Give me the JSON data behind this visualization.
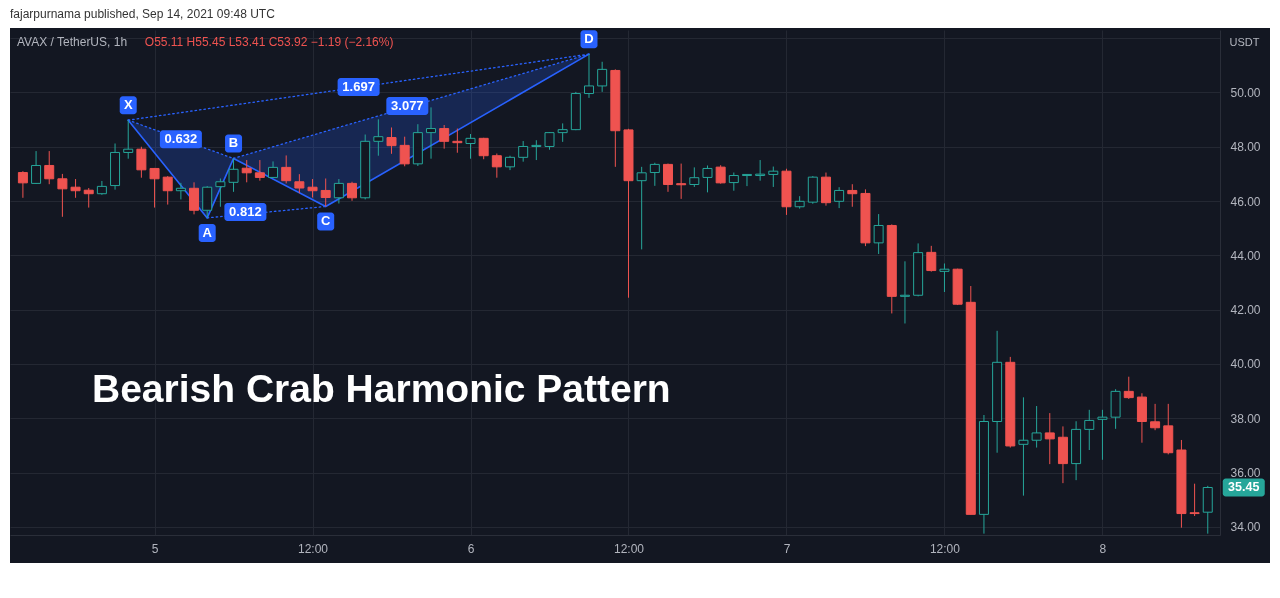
{
  "chart_data": {
    "type": "candlestick",
    "title": "AVAX / TetherUS, 1h",
    "ylabel": "USDT",
    "xlim": [
      "2021-09-04T13:24",
      "2021-09-08T08:33"
    ],
    "xticks": [
      {
        "value": "2021-09-05T00:00",
        "label": "5"
      },
      {
        "value": "2021-09-05T12:00",
        "label": "12:00"
      },
      {
        "value": "2021-09-06T00:00",
        "label": "6"
      },
      {
        "value": "2021-09-06T12:00",
        "label": "12:00"
      },
      {
        "value": "2021-09-07T00:00",
        "label": "7"
      },
      {
        "value": "2021-09-07T12:00",
        "label": "12:00"
      },
      {
        "value": "2021-09-08T00:00",
        "label": "8"
      }
    ],
    "ylim": [
      33.7,
      52.3
    ],
    "yticks": [
      {
        "value": 34,
        "label": "34.00"
      },
      {
        "value": 36,
        "label": "36.00"
      },
      {
        "value": 38,
        "label": "38.00"
      },
      {
        "value": 40,
        "label": "40.00"
      },
      {
        "value": 42,
        "label": "42.00"
      },
      {
        "value": 44,
        "label": "44.00"
      },
      {
        "value": 46,
        "label": "46.00"
      },
      {
        "value": 48,
        "label": "48.00"
      },
      {
        "value": 50,
        "label": "50.00"
      },
      {
        "value": 52,
        "label": null
      }
    ],
    "grid": true,
    "series": [
      {
        "x": [
          "2021-09-04T14:00",
          "2021-09-04T15:00",
          "2021-09-04T16:00",
          "2021-09-04T17:00",
          "2021-09-04T18:00",
          "2021-09-04T19:00",
          "2021-09-04T20:00",
          "2021-09-04T21:00",
          "2021-09-04T22:00",
          "2021-09-04T23:00",
          "2021-09-05T00:00",
          "2021-09-05T01:00",
          "2021-09-05T02:00",
          "2021-09-05T03:00",
          "2021-09-05T04:00",
          "2021-09-05T05:00",
          "2021-09-05T06:00",
          "2021-09-05T07:00",
          "2021-09-05T08:00",
          "2021-09-05T09:00",
          "2021-09-05T10:00",
          "2021-09-05T11:00",
          "2021-09-05T12:00",
          "2021-09-05T13:00",
          "2021-09-05T14:00",
          "2021-09-05T15:00",
          "2021-09-05T16:00",
          "2021-09-05T17:00",
          "2021-09-05T18:00",
          "2021-09-05T19:00",
          "2021-09-05T20:00",
          "2021-09-05T21:00",
          "2021-09-05T22:00",
          "2021-09-05T23:00",
          "2021-09-06T00:00",
          "2021-09-06T01:00",
          "2021-09-06T02:00",
          "2021-09-06T03:00",
          "2021-09-06T04:00",
          "2021-09-06T05:00",
          "2021-09-06T06:00",
          "2021-09-06T07:00",
          "2021-09-06T08:00",
          "2021-09-06T09:00",
          "2021-09-06T10:00",
          "2021-09-06T11:00",
          "2021-09-06T12:00",
          "2021-09-06T13:00",
          "2021-09-06T14:00",
          "2021-09-06T15:00",
          "2021-09-06T16:00",
          "2021-09-06T17:00",
          "2021-09-06T18:00",
          "2021-09-06T19:00",
          "2021-09-06T20:00",
          "2021-09-06T21:00",
          "2021-09-06T22:00",
          "2021-09-06T23:00",
          "2021-09-07T00:00",
          "2021-09-07T01:00",
          "2021-09-07T02:00",
          "2021-09-07T03:00",
          "2021-09-07T04:00",
          "2021-09-07T05:00",
          "2021-09-07T06:00",
          "2021-09-07T07:00",
          "2021-09-07T08:00",
          "2021-09-07T09:00",
          "2021-09-07T10:00",
          "2021-09-07T11:00",
          "2021-09-07T12:00",
          "2021-09-07T13:00",
          "2021-09-07T14:00",
          "2021-09-07T15:00",
          "2021-09-07T16:00",
          "2021-09-07T17:00",
          "2021-09-07T18:00",
          "2021-09-07T19:00",
          "2021-09-07T20:00",
          "2021-09-07T21:00",
          "2021-09-07T22:00",
          "2021-09-07T23:00",
          "2021-09-08T00:00",
          "2021-09-08T01:00",
          "2021-09-08T02:00",
          "2021-09-08T03:00",
          "2021-09-08T04:00",
          "2021-09-08T05:00",
          "2021-09-08T06:00",
          "2021-09-08T07:00",
          "2021-09-08T08:00"
        ],
        "ohlc": [
          [
            47.05,
            47.1,
            46.12,
            46.67
          ],
          [
            46.65,
            47.84,
            46.63,
            47.31
          ],
          [
            47.31,
            47.84,
            46.62,
            46.82
          ],
          [
            46.82,
            47.0,
            45.42,
            46.45
          ],
          [
            46.51,
            46.81,
            46.12,
            46.38
          ],
          [
            46.4,
            46.48,
            45.76,
            46.27
          ],
          [
            46.27,
            46.74,
            46.23,
            46.54
          ],
          [
            46.57,
            48.12,
            46.42,
            47.79
          ],
          [
            47.79,
            48.98,
            47.56,
            47.91
          ],
          [
            47.91,
            48.0,
            46.86,
            47.15
          ],
          [
            47.2,
            47.22,
            45.76,
            46.82
          ],
          [
            46.88,
            46.92,
            45.87,
            46.38
          ],
          [
            46.38,
            46.67,
            46.06,
            46.47
          ],
          [
            46.47,
            46.69,
            45.51,
            45.66
          ],
          [
            45.66,
            46.55,
            45.38,
            46.51
          ],
          [
            46.53,
            46.83,
            45.79,
            46.71
          ],
          [
            46.69,
            47.57,
            46.34,
            47.17
          ],
          [
            47.21,
            47.51,
            46.69,
            47.04
          ],
          [
            47.04,
            47.51,
            46.75,
            46.87
          ],
          [
            46.87,
            47.46,
            46.85,
            47.24
          ],
          [
            47.24,
            47.68,
            46.65,
            46.75
          ],
          [
            46.71,
            46.99,
            46.29,
            46.48
          ],
          [
            46.51,
            46.81,
            46.13,
            46.38
          ],
          [
            46.39,
            46.83,
            45.8,
            46.13
          ],
          [
            46.12,
            46.81,
            45.91,
            46.65
          ],
          [
            46.65,
            46.71,
            46.01,
            46.12
          ],
          [
            46.12,
            48.45,
            46.06,
            48.2
          ],
          [
            48.2,
            49.01,
            47.67,
            48.37
          ],
          [
            48.34,
            48.71,
            47.74,
            48.04
          ],
          [
            48.05,
            48.37,
            47.28,
            47.37
          ],
          [
            47.37,
            48.83,
            47.29,
            48.52
          ],
          [
            48.52,
            49.45,
            47.56,
            48.67
          ],
          [
            48.67,
            48.8,
            47.93,
            48.2
          ],
          [
            48.2,
            48.67,
            47.78,
            48.15
          ],
          [
            48.12,
            48.47,
            47.56,
            48.31
          ],
          [
            48.31,
            48.33,
            47.54,
            47.67
          ],
          [
            47.67,
            47.75,
            46.86,
            47.26
          ],
          [
            47.26,
            47.67,
            47.14,
            47.61
          ],
          [
            47.61,
            48.21,
            47.45,
            48.01
          ],
          [
            48.01,
            48.24,
            47.51,
            48.05
          ],
          [
            48.01,
            48.54,
            47.89,
            48.52
          ],
          [
            48.52,
            48.86,
            48.18,
            48.63
          ],
          [
            48.63,
            50.02,
            48.61,
            49.96
          ],
          [
            49.96,
            51.41,
            49.8,
            50.24
          ],
          [
            50.24,
            51.13,
            50.02,
            50.85
          ],
          [
            50.81,
            50.85,
            47.26,
            48.59
          ],
          [
            48.62,
            48.66,
            42.44,
            46.75
          ],
          [
            46.75,
            47.26,
            44.22,
            47.04
          ],
          [
            47.05,
            47.41,
            46.56,
            47.35
          ],
          [
            47.35,
            47.38,
            46.34,
            46.61
          ],
          [
            46.64,
            47.38,
            46.08,
            46.6
          ],
          [
            46.61,
            47.24,
            46.52,
            46.86
          ],
          [
            46.87,
            47.31,
            46.32,
            47.2
          ],
          [
            47.25,
            47.32,
            46.64,
            46.67
          ],
          [
            46.68,
            47.05,
            46.38,
            46.94
          ],
          [
            46.94,
            46.99,
            46.55,
            46.98
          ],
          [
            46.94,
            47.51,
            46.75,
            46.99
          ],
          [
            46.98,
            47.27,
            46.52,
            47.1
          ],
          [
            47.1,
            47.19,
            45.49,
            45.79
          ],
          [
            45.79,
            46.18,
            45.72,
            45.99
          ],
          [
            45.96,
            46.92,
            45.9,
            46.88
          ],
          [
            46.88,
            47.05,
            45.83,
            45.94
          ],
          [
            45.99,
            46.51,
            45.74,
            46.39
          ],
          [
            46.39,
            46.62,
            45.79,
            46.27
          ],
          [
            46.28,
            46.43,
            44.34,
            44.46
          ],
          [
            44.46,
            45.52,
            44.05,
            45.1
          ],
          [
            45.1,
            45.14,
            41.86,
            42.49
          ],
          [
            42.49,
            43.78,
            41.49,
            42.53
          ],
          [
            42.53,
            44.44,
            42.49,
            44.1
          ],
          [
            44.11,
            44.35,
            43.4,
            43.44
          ],
          [
            43.41,
            43.7,
            42.65,
            43.49
          ],
          [
            43.49,
            43.51,
            42.17,
            42.2
          ],
          [
            42.27,
            42.87,
            34.46,
            34.46
          ],
          [
            34.46,
            38.12,
            33.75,
            37.88
          ],
          [
            37.88,
            41.22,
            36.73,
            40.06
          ],
          [
            40.06,
            40.26,
            36.92,
            36.98
          ],
          [
            37.04,
            38.77,
            35.15,
            37.19
          ],
          [
            37.19,
            38.45,
            36.92,
            37.46
          ],
          [
            37.46,
            38.19,
            36.31,
            37.24
          ],
          [
            37.3,
            37.7,
            35.61,
            36.33
          ],
          [
            36.33,
            37.89,
            35.72,
            37.59
          ],
          [
            37.59,
            38.31,
            36.83,
            37.92
          ],
          [
            37.96,
            38.31,
            36.47,
            38.04
          ],
          [
            38.04,
            39.07,
            37.61,
            38.99
          ],
          [
            38.99,
            39.53,
            38.71,
            38.76
          ],
          [
            38.78,
            38.92,
            37.1,
            37.88
          ],
          [
            37.87,
            38.53,
            37.56,
            37.65
          ],
          [
            37.72,
            38.53,
            36.67,
            36.73
          ],
          [
            36.83,
            37.2,
            33.97,
            34.49
          ],
          [
            34.52,
            35.59,
            34.4,
            34.49
          ],
          [
            34.54,
            35.51,
            33.75,
            35.45
          ]
        ],
        "colors": [
          "#ef5350",
          "#26a69a",
          "#ef5350",
          "#ef5350",
          "#ef5350",
          "#ef5350",
          "#26a69a",
          "#26a69a",
          "#26a69a",
          "#ef5350",
          "#ef5350",
          "#ef5350",
          "#26a69a",
          "#ef5350",
          "#26a69a",
          "#26a69a",
          "#26a69a",
          "#ef5350",
          "#ef5350",
          "#26a69a",
          "#ef5350",
          "#ef5350",
          "#ef5350",
          "#ef5350",
          "#26a69a",
          "#ef5350",
          "#26a69a",
          "#26a69a",
          "#ef5350",
          "#ef5350",
          "#26a69a",
          "#26a69a",
          "#ef5350",
          "#ef5350",
          "#26a69a",
          "#ef5350",
          "#ef5350",
          "#26a69a",
          "#26a69a",
          "#26a69a",
          "#26a69a",
          "#26a69a",
          "#26a69a",
          "#26a69a",
          "#26a69a",
          "#ef5350",
          "#ef5350",
          "#26a69a",
          "#26a69a",
          "#ef5350",
          "#ef5350",
          "#26a69a",
          "#26a69a",
          "#ef5350",
          "#26a69a",
          "#26a69a",
          "#26a69a",
          "#26a69a",
          "#ef5350",
          "#26a69a",
          "#26a69a",
          "#ef5350",
          "#26a69a",
          "#ef5350",
          "#ef5350",
          "#26a69a",
          "#ef5350",
          "#26a69a",
          "#26a69a",
          "#ef5350",
          "#26a69a",
          "#ef5350",
          "#ef5350",
          "#26a69a",
          "#26a69a",
          "#ef5350",
          "#26a69a",
          "#26a69a",
          "#ef5350",
          "#ef5350",
          "#26a69a",
          "#26a69a",
          "#26a69a",
          "#26a69a",
          "#ef5350",
          "#ef5350",
          "#ef5350",
          "#ef5350",
          "#ef5350",
          "#ef5350",
          "#26a69a"
        ]
      },
      {
        "type": "line",
        "x": [
          "2021-09-04T22:00",
          "2021-09-05T04:00",
          "2021-09-05T06:00",
          "2021-09-05T13:00",
          "2021-09-06T09:00"
        ],
        "values": [
          48.98,
          45.38,
          47.57,
          45.8,
          51.41
        ],
        "color": "#2962ff",
        "line_style": "solid"
      },
      {
        "type": "line",
        "x": [
          "2021-09-04T22:00",
          "2021-09-05T04:00",
          "2021-09-05T06:00"
        ],
        "values": [
          48.98,
          47.92,
          47.57
        ],
        "lower": [
          48.98,
          45.38,
          47.57
        ],
        "upper": [
          48.98,
          47.92,
          47.57
        ],
        "color": "#2962ff",
        "line_style": "dotted"
      },
      {
        "type": "line",
        "x": [
          "2021-09-05T04:00",
          "2021-09-05T13:00"
        ],
        "values": [
          45.38,
          45.8
        ],
        "color": "#2962ff",
        "line_style": "dotted"
      },
      {
        "type": "line",
        "x": [
          "2021-09-04T22:00",
          "2021-09-06T09:00"
        ],
        "values": [
          48.98,
          51.41
        ],
        "color": "#2962ff",
        "line_style": "dotted"
      },
      {
        "type": "line",
        "x": [
          "2021-09-05T06:00",
          "2021-09-05T13:00",
          "2021-09-06T09:00"
        ],
        "values": [
          47.57,
          48.57,
          51.41
        ],
        "lower": [
          47.57,
          45.8,
          51.41
        ],
        "upper": [
          47.57,
          48.57,
          51.41
        ],
        "color": "#2962ff",
        "line_style": "dotted"
      }
    ],
    "annotations": [
      "fajarpurnama published, Sep 14, 2021 09:48 UTC",
      "O55.11 H55.45 L53.41 C53.92 −1.19 (−2.16%)",
      "Bearish Crab Harmonic Pattern",
      {
        "text": "X",
        "x": "2021-09-04T22:00",
        "y": 48.98
      },
      {
        "text": "A",
        "x": "2021-09-05T04:00",
        "y": 45.38
      },
      {
        "text": "B",
        "x": "2021-09-05T06:00",
        "y": 47.57
      },
      {
        "text": "C",
        "x": "2021-09-05T13:00",
        "y": 45.8
      },
      {
        "text": "D",
        "x": "2021-09-06T09:00",
        "y": 51.41
      },
      {
        "text": "0.632",
        "x": "2021-09-05T02:00",
        "y": 48.28
      },
      {
        "text": "1.697",
        "x": "2021-09-05T15:30",
        "y": 50.2
      },
      {
        "text": "3.077",
        "x": "2021-09-05T19:12",
        "y": 49.5
      },
      {
        "text": "0.812",
        "x": "2021-09-05T06:54",
        "y": 45.6
      },
      {
        "text": "35.45",
        "x": "2021-09-08T08:00",
        "y": 35.45
      }
    ]
  }
}
